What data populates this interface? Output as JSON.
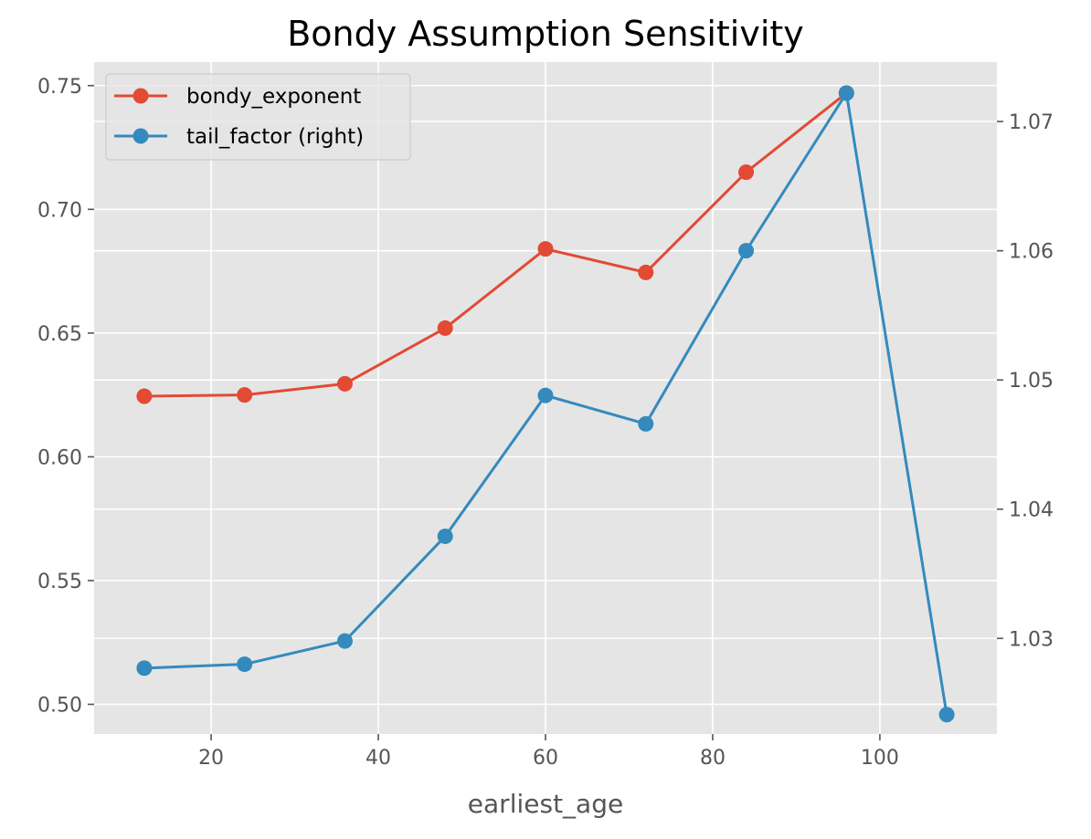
{
  "chart_data": {
    "type": "line",
    "title": "Bondy Assumption Sensitivity",
    "xlabel": "earliest_age",
    "ylabel": "",
    "y2label": "",
    "grid": true,
    "legend_position": "top-left",
    "xlim": [
      6.0,
      114.0
    ],
    "ylim": [
      0.488,
      0.7595
    ],
    "y2lim": [
      1.0226,
      1.0746
    ],
    "x_ticks": [
      20,
      40,
      60,
      80,
      100
    ],
    "x_tick_labels": [
      "20",
      "40",
      "60",
      "80",
      "100"
    ],
    "y_ticks": [
      0.5,
      0.55,
      0.6,
      0.65,
      0.7,
      0.75
    ],
    "y_tick_labels": [
      "0.50",
      "0.55",
      "0.60",
      "0.65",
      "0.70",
      "0.75"
    ],
    "y2_ticks": [
      1.03,
      1.04,
      1.05,
      1.06,
      1.07
    ],
    "y2_tick_labels": [
      "1.03",
      "1.04",
      "1.05",
      "1.06",
      "1.07"
    ],
    "x": [
      12,
      24,
      36,
      48,
      60,
      72,
      84,
      96,
      108
    ],
    "series": [
      {
        "name": "bondy_exponent",
        "axis": "left",
        "color": "#E24A33",
        "values": [
          0.6245,
          0.625,
          0.6295,
          0.652,
          0.684,
          0.6745,
          0.715,
          0.747,
          null
        ]
      },
      {
        "name": "tail_factor (right)",
        "axis": "right",
        "color": "#348ABD",
        "values": [
          1.0277,
          1.028,
          1.0298,
          1.0379,
          1.0488,
          1.0466,
          1.06,
          1.0722,
          1.0241
        ]
      }
    ]
  }
}
